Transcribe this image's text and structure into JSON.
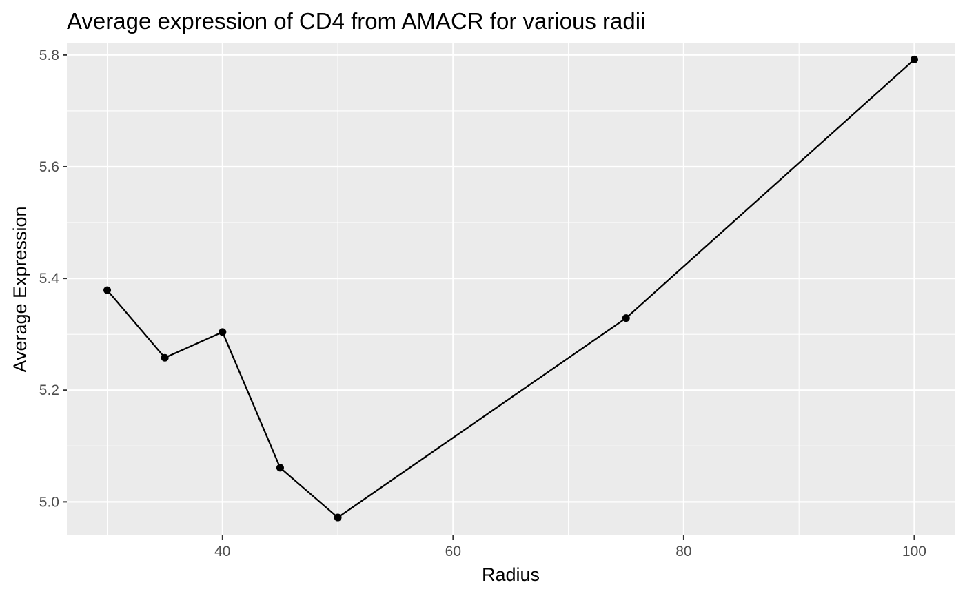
{
  "chart_data": {
    "type": "line",
    "title": "Average expression of CD4 from AMACR for various radii",
    "xlabel": "Radius",
    "ylabel": "Average Expression",
    "x": [
      30,
      35,
      40,
      45,
      50,
      75,
      100
    ],
    "series": [
      {
        "values": [
          5.379,
          5.258,
          5.304,
          5.061,
          4.972,
          5.329,
          5.792
        ]
      }
    ],
    "xlim": [
      26.5,
      103.5
    ],
    "ylim": [
      4.94,
      5.822
    ],
    "x_ticks": [
      40,
      60,
      80,
      100
    ],
    "x_tick_labels": [
      "40",
      "60",
      "80",
      "100"
    ],
    "x_minor_ticks": [
      30,
      50,
      70,
      90
    ],
    "y_ticks": [
      5.0,
      5.2,
      5.4,
      5.6,
      5.8
    ],
    "y_tick_labels": [
      "5.0",
      "5.2",
      "5.4",
      "5.6",
      "5.8"
    ],
    "y_minor_ticks": [
      5.1,
      5.3,
      5.5,
      5.7
    ],
    "grid": true,
    "legend": "none",
    "colors": {
      "panel_background": "#ebebeb",
      "grid_line": "#ffffff",
      "series_line": "#000000",
      "point": "#000000",
      "tick_label": "#4d4d4d",
      "tick_mark": "#333333",
      "text": "#000000"
    }
  }
}
